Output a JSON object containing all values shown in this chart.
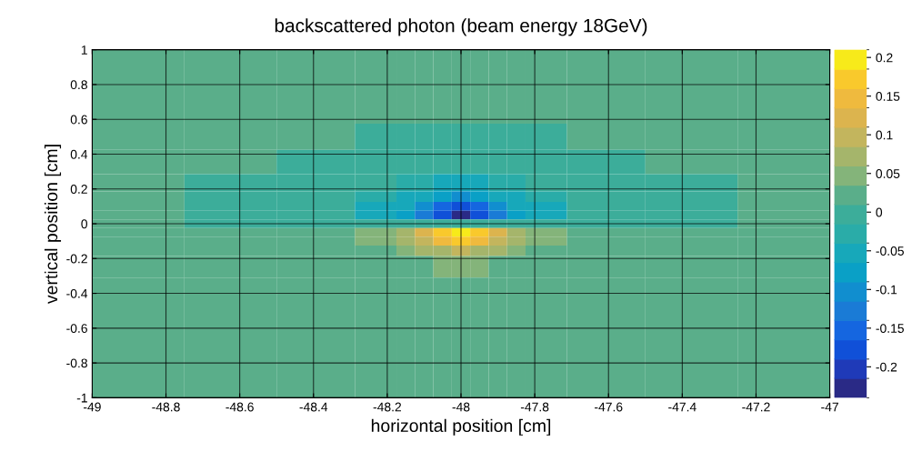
{
  "chart_data": {
    "type": "heatmap",
    "title": "backscattered photon (beam energy 18GeV)",
    "xlabel": "horizontal position [cm]",
    "ylabel": "vertical position [cm]",
    "x": [
      -48.875,
      -48.625,
      -48.375,
      -48.2,
      -48.15,
      -48.1,
      -48.05,
      -48.0,
      -47.95,
      -47.9,
      -47.85,
      -47.8,
      -47.625,
      -47.375,
      -47.125
    ],
    "y": [
      0.875,
      0.65,
      0.5,
      0.35,
      0.22,
      0.15,
      0.1,
      0.05,
      0.0,
      -0.05,
      -0.1,
      -0.15,
      -0.22,
      -0.4,
      -0.75
    ],
    "cells": [
      [
        0.02,
        0.02,
        0.02,
        0.02,
        0.02,
        0.02,
        0.02,
        0.02,
        0.02,
        0.02,
        0.02,
        0.02,
        0.02,
        0.02,
        0.02
      ],
      [
        0.02,
        0.02,
        0.02,
        0.02,
        0.02,
        0.02,
        0.02,
        0.02,
        0.02,
        0.02,
        0.02,
        0.02,
        0.02,
        0.02,
        0.02
      ],
      [
        0.02,
        0.02,
        0.02,
        -0.005,
        -0.005,
        -0.005,
        -0.005,
        -0.005,
        -0.005,
        -0.005,
        -0.005,
        -0.005,
        0.02,
        0.02,
        0.02
      ],
      [
        0.02,
        0.02,
        -0.005,
        -0.005,
        -0.005,
        -0.005,
        -0.005,
        -0.005,
        -0.005,
        -0.005,
        -0.005,
        -0.005,
        -0.005,
        0.02,
        0.02
      ],
      [
        0.02,
        -0.005,
        -0.005,
        -0.005,
        -0.02,
        -0.03,
        -0.05,
        -0.05,
        -0.05,
        -0.03,
        -0.02,
        -0.005,
        -0.005,
        -0.005,
        0.02
      ],
      [
        0.02,
        -0.005,
        -0.005,
        -0.03,
        -0.05,
        -0.06,
        -0.08,
        -0.1,
        -0.08,
        -0.06,
        -0.05,
        -0.03,
        -0.005,
        -0.005,
        0.02
      ],
      [
        0.02,
        -0.005,
        -0.005,
        -0.05,
        -0.06,
        -0.1,
        -0.15,
        -0.18,
        -0.15,
        -0.1,
        -0.06,
        -0.05,
        -0.005,
        -0.005,
        0.02
      ],
      [
        0.02,
        -0.005,
        -0.005,
        -0.05,
        -0.07,
        -0.12,
        -0.17,
        -0.22,
        -0.17,
        -0.12,
        -0.07,
        -0.05,
        -0.005,
        -0.005,
        0.02
      ],
      [
        0.02,
        -0.005,
        -0.005,
        -0.005,
        -0.005,
        -0.005,
        0.0,
        0.0,
        0.0,
        -0.005,
        -0.005,
        -0.005,
        -0.005,
        -0.005,
        0.02
      ],
      [
        0.02,
        0.02,
        0.02,
        0.05,
        0.07,
        0.12,
        0.17,
        0.2,
        0.17,
        0.12,
        0.07,
        0.05,
        0.02,
        0.02,
        0.02
      ],
      [
        0.02,
        0.02,
        0.02,
        0.05,
        0.07,
        0.1,
        0.15,
        0.18,
        0.15,
        0.1,
        0.07,
        0.05,
        0.02,
        0.02,
        0.02
      ],
      [
        0.02,
        0.02,
        0.02,
        0.03,
        0.05,
        0.07,
        0.08,
        0.1,
        0.08,
        0.07,
        0.05,
        0.03,
        0.02,
        0.02,
        0.02
      ],
      [
        0.02,
        0.02,
        0.02,
        0.02,
        0.02,
        0.03,
        0.05,
        0.05,
        0.05,
        0.03,
        0.02,
        0.02,
        0.02,
        0.02,
        0.02
      ],
      [
        0.02,
        0.02,
        0.02,
        0.02,
        0.02,
        0.02,
        0.02,
        0.02,
        0.02,
        0.02,
        0.02,
        0.02,
        0.02,
        0.02,
        0.02
      ],
      [
        0.02,
        0.02,
        0.02,
        0.02,
        0.02,
        0.02,
        0.02,
        0.02,
        0.02,
        0.02,
        0.02,
        0.02,
        0.02,
        0.02,
        0.02
      ]
    ],
    "colors": [
      "#2a2a86",
      "#1f3ab8",
      "#1050d8",
      "#1566e0",
      "#1a7bd6",
      "#118ecf",
      "#0aa0c6",
      "#17a8ba",
      "#2aaca8",
      "#3cad9a",
      "#5aae8a",
      "#84b47a",
      "#a5b56b",
      "#c3b55d",
      "#dcb44e",
      "#efba3e",
      "#f9c92c",
      "#f7ea1a"
    ],
    "xlim": [
      -49,
      -47
    ],
    "xticks": [
      -49,
      -48.8,
      -48.6,
      -48.4,
      -48.2,
      -48,
      -47.8,
      -47.6,
      -47.4,
      -47.2,
      -47
    ],
    "ylim": [
      -1,
      1
    ],
    "yticks": [
      -1,
      -0.8,
      -0.6,
      -0.4,
      -0.2,
      0,
      0.2,
      0.4,
      0.6,
      0.8,
      1
    ],
    "clim": [
      -0.24,
      0.21
    ],
    "cticks": [
      -0.2,
      -0.15,
      -0.1,
      -0.05,
      0,
      0.05,
      0.1,
      0.15,
      0.2
    ],
    "grid": true
  }
}
